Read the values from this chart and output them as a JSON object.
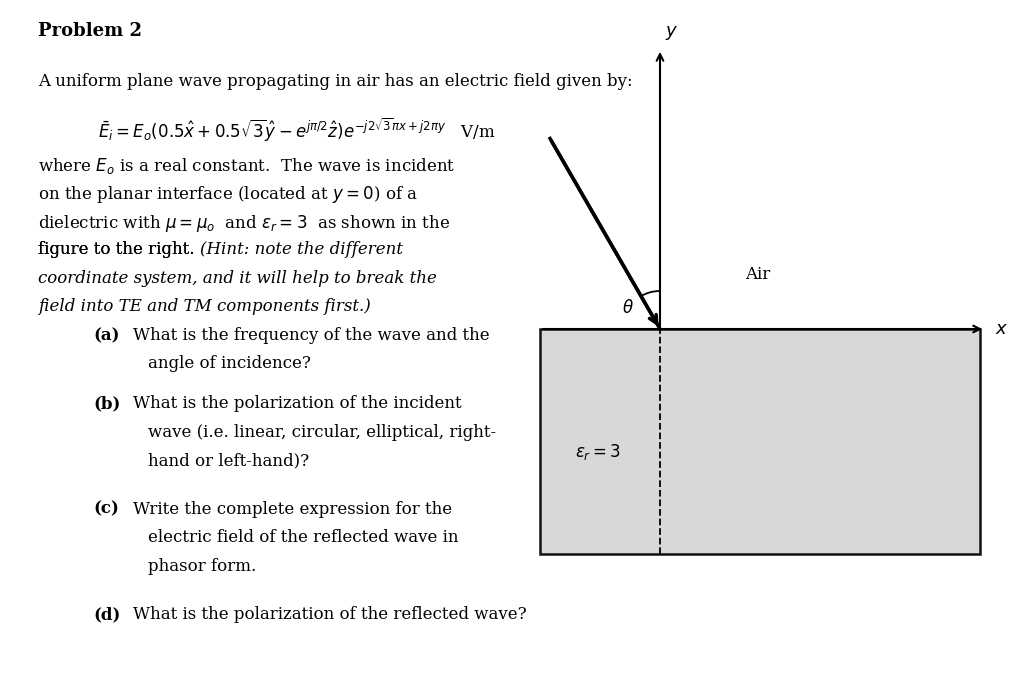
{
  "background_color": "#ffffff",
  "title": "Problem 2",
  "intro_line": "A uniform plane wave propagating in air has an electric field given by:",
  "para_lines_normal": [
    "where $E_o$ is a real constant.  The wave is incident",
    "on the planar interface (located at $y = 0$) of a",
    "dielectric with $\\mu = \\mu_o$  and $\\varepsilon_r = 3$  as shown in the",
    "figure to the right."
  ],
  "para_lines_italic": [
    "  (Hint: note the different",
    "coordinate system, and it will help to break the",
    "field into TE and TM components first.)"
  ],
  "part_a_bold": "(a)",
  "part_a_line1": " What is the frequency of the wave and the",
  "part_a_line2": "angle of incidence?",
  "part_b_bold": "(b)",
  "part_b_line1": " What is the polarization of the incident",
  "part_b_line2": "wave (i.e. linear, circular, elliptical, right-",
  "part_b_line3": "hand or left-hand)?",
  "part_c_bold": "(c)",
  "part_c_line1": " Write the complete expression for the",
  "part_c_line2": "electric field of the reflected wave in",
  "part_c_line3": "phasor form.",
  "part_d_bold": "(d)",
  "part_d_line1": " What is the polarization of the reflected wave?",
  "diagram_rect_color": "#d8d8d8",
  "diagram_rect_edge": "#111111",
  "air_label": "Air",
  "epsilon_label": "$\\varepsilon_r = 3$",
  "theta_label": "$\\theta$",
  "x_label": "$x$",
  "y_label": "$y$",
  "fontsize_title": 13,
  "fontsize_body": 12,
  "fontsize_eq": 12
}
